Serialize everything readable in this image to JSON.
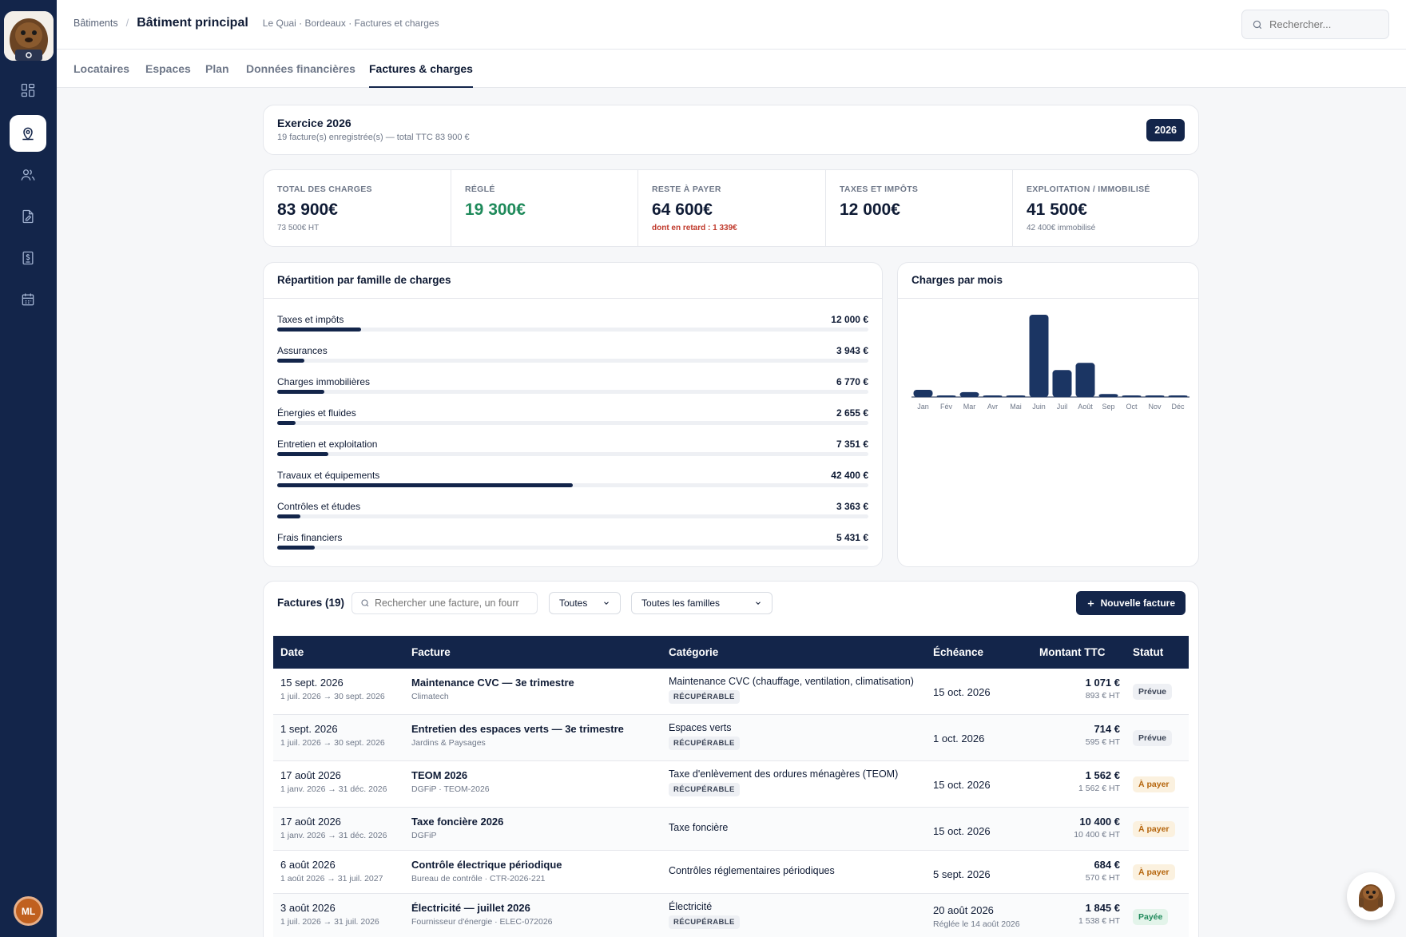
{
  "topbar": {
    "breadcrumb_root": "Bâtiments",
    "current": "Bâtiment principal",
    "subtitle": "Le Quai · Bordeaux · Factures et charges",
    "search_placeholder": "Rechercher..."
  },
  "tabs": [
    "Locataires",
    "Espaces",
    "Plan",
    "Données financières",
    "Factures & charges"
  ],
  "active_tab": "Factures & charges",
  "user": {
    "initials": "ML"
  },
  "exercise": {
    "title": "Exercice 2026",
    "subtitle": "19 facture(s) enregistrée(s) — total TTC 83 900 €",
    "year": "2026"
  },
  "kpis": [
    {
      "label": "TOTAL DES CHARGES",
      "value": "83 900€",
      "sub": "73 500€ HT"
    },
    {
      "label": "RÉGLÉ",
      "value": "19 300€",
      "sub": ""
    },
    {
      "label": "RESTE À PAYER",
      "value": "64 600€",
      "sub": "dont en retard : 1 339€"
    },
    {
      "label": "TAXES ET IMPÔTS",
      "value": "12 000€",
      "sub": ""
    },
    {
      "label": "EXPLOITATION / IMMOBILISÉ",
      "value": "41 500€",
      "sub": "42 400€ immobilisé"
    }
  ],
  "families": {
    "title": "Répartition par famille de charges",
    "items": [
      {
        "label": "Taxes et impôts",
        "value": "12 000 €",
        "amount": 12000
      },
      {
        "label": "Assurances",
        "value": "3 943 €",
        "amount": 3943
      },
      {
        "label": "Charges immobilières",
        "value": "6 770 €",
        "amount": 6770
      },
      {
        "label": "Énergies et fluides",
        "value": "2 655 €",
        "amount": 2655
      },
      {
        "label": "Entretien et exploitation",
        "value": "7 351 €",
        "amount": 7351
      },
      {
        "label": "Travaux et équipements",
        "value": "42 400 €",
        "amount": 42400
      },
      {
        "label": "Contrôles et études",
        "value": "3 363 €",
        "amount": 3363
      },
      {
        "label": "Frais financiers",
        "value": "5 431 €",
        "amount": 5431
      }
    ]
  },
  "chart_data": {
    "type": "bar",
    "title": "Charges par mois",
    "categories": [
      "Jan",
      "Fév",
      "Mar",
      "Avr",
      "Mai",
      "Juin",
      "Juil",
      "Août",
      "Sep",
      "Oct",
      "Nov",
      "Déc"
    ],
    "values": [
      1900,
      400,
      1300,
      300,
      300,
      21700,
      7100,
      9000,
      800,
      400,
      400,
      400
    ],
    "xlabel": "",
    "ylabel": "",
    "grid": false
  },
  "invoices": {
    "title": "Factures (19)",
    "search_placeholder": "Rechercher une facture, un fourr",
    "status_filter": "Toutes",
    "family_filter": "Toutes les familles",
    "new_button": "Nouvelle facture",
    "columns": [
      "Date",
      "Facture",
      "Catégorie",
      "Échéance",
      "Montant TTC",
      "Statut"
    ],
    "rows": [
      {
        "date": "15 sept. 2026",
        "period": "1 juil. 2026 → 30 sept. 2026",
        "name": "Maintenance CVC — 3e trimestre",
        "supplier": "Climatech",
        "category": "Maintenance CVC (chauffage, ventilation, climatisation)",
        "tag": "RÉCUPÉRABLE",
        "due": "15 oct. 2026",
        "due_sub": "",
        "ttc": "1 071 €",
        "ht": "893 € HT",
        "status": "Prévue",
        "status_kind": "prevue"
      },
      {
        "date": "1 sept. 2026",
        "period": "1 juil. 2026 → 30 sept. 2026",
        "name": "Entretien des espaces verts — 3e trimestre",
        "supplier": "Jardins & Paysages",
        "category": "Espaces verts",
        "tag": "RÉCUPÉRABLE",
        "due": "1 oct. 2026",
        "due_sub": "",
        "ttc": "714 €",
        "ht": "595 € HT",
        "status": "Prévue",
        "status_kind": "prevue"
      },
      {
        "date": "17 août 2026",
        "period": "1 janv. 2026 → 31 déc. 2026",
        "name": "TEOM 2026",
        "supplier": "DGFiP · TEOM-2026",
        "category": "Taxe d'enlèvement des ordures ménagères (TEOM)",
        "tag": "RÉCUPÉRABLE",
        "due": "15 oct. 2026",
        "due_sub": "",
        "ttc": "1 562 €",
        "ht": "1 562 € HT",
        "status": "À payer",
        "status_kind": "payer"
      },
      {
        "date": "17 août 2026",
        "period": "1 janv. 2026 → 31 déc. 2026",
        "name": "Taxe foncière 2026",
        "supplier": "DGFiP",
        "category": "Taxe foncière",
        "tag": "",
        "due": "15 oct. 2026",
        "due_sub": "",
        "ttc": "10 400 €",
        "ht": "10 400 € HT",
        "status": "À payer",
        "status_kind": "payer"
      },
      {
        "date": "6 août 2026",
        "period": "1 août 2026 → 31 juil. 2027",
        "name": "Contrôle électrique périodique",
        "supplier": "Bureau de contrôle · CTR-2026-221",
        "category": "Contrôles réglementaires périodiques",
        "tag": "",
        "due": "5 sept. 2026",
        "due_sub": "",
        "ttc": "684 €",
        "ht": "570 € HT",
        "status": "À payer",
        "status_kind": "payer"
      },
      {
        "date": "3 août 2026",
        "period": "1 juil. 2026 → 31 juil. 2026",
        "name": "Électricité — juillet 2026",
        "supplier": "Fournisseur d'énergie · ELEC-072026",
        "category": "Électricité",
        "tag": "RÉCUPÉRABLE",
        "due": "20 août 2026",
        "due_sub": "Réglée le 14 août 2026",
        "ttc": "1 845 €",
        "ht": "1 538 € HT",
        "status": "Payée",
        "status_kind": "payee"
      }
    ]
  }
}
